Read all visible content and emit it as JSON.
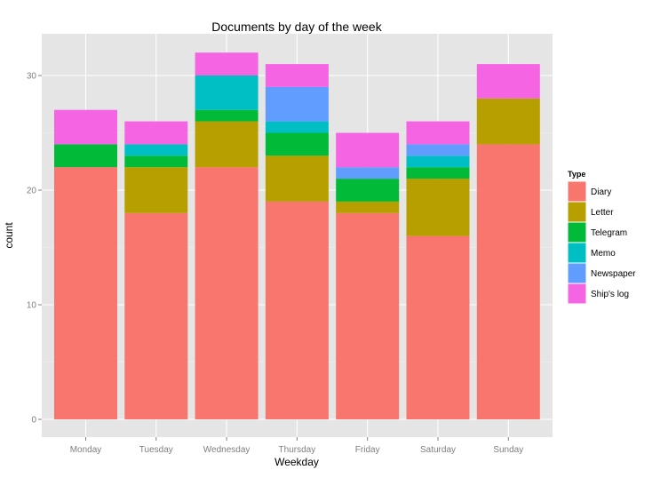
{
  "chart_data": {
    "type": "bar",
    "stacked": true,
    "title": "Documents by day of the week",
    "xlabel": "Weekday",
    "ylabel": "count",
    "ylim": [
      0,
      33
    ],
    "yticks": [
      0,
      10,
      20,
      30
    ],
    "grid": true,
    "legend_position": "right",
    "legend_title": "Type",
    "categories": [
      "Monday",
      "Tuesday",
      "Wednesday",
      "Thursday",
      "Friday",
      "Saturday",
      "Sunday"
    ],
    "series": [
      {
        "name": "Diary",
        "color": "#F8766D",
        "values": [
          22,
          18,
          22,
          19,
          18,
          16,
          24
        ]
      },
      {
        "name": "Letter",
        "color": "#B79F00",
        "values": [
          0,
          4,
          4,
          4,
          1,
          5,
          4
        ]
      },
      {
        "name": "Telegram",
        "color": "#00BA38",
        "values": [
          2,
          1,
          1,
          2,
          2,
          1,
          0
        ]
      },
      {
        "name": "Memo",
        "color": "#00BFC4",
        "values": [
          0,
          1,
          3,
          1,
          0,
          1,
          0
        ]
      },
      {
        "name": "Newspaper",
        "color": "#619CFF",
        "values": [
          0,
          0,
          0,
          3,
          1,
          1,
          0
        ]
      },
      {
        "name": "Ship's log",
        "color": "#F564E3",
        "values": [
          3,
          2,
          2,
          2,
          3,
          2,
          3
        ]
      }
    ]
  }
}
